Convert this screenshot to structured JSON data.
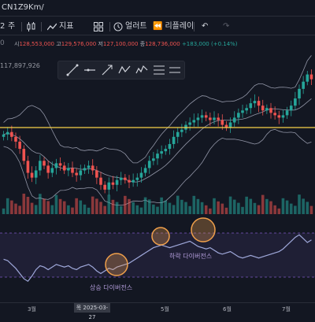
{
  "topbar": {
    "symbol": "CN1Z9Km/"
  },
  "toolbar": {
    "left_glyph": "2",
    "period_label": "주",
    "indicators_label": "지표",
    "alerts_label": "얼러트",
    "replay_label": "리플레이",
    "icons": [
      "candles-icon",
      "indicators-icon",
      "layout-icon",
      "alert-icon",
      "replay-icon",
      "undo-icon",
      "redo-icon"
    ]
  },
  "ohlc": {
    "open_label": "시",
    "open": "128,553,000",
    "high_label": "고",
    "high": "129,576,000",
    "low_label": "저",
    "low": "127,100,000",
    "close_label": "종",
    "close": "128,736,000",
    "change": "+183,000 (+0.14%)"
  },
  "header_left": "0",
  "low_label": "117,897,926",
  "annotations": {
    "bearish_divergence": "하락 다이버전스",
    "bullish_divergence": "상승 다이버전스"
  },
  "xaxis": {
    "ticks": [
      "3월",
      "5월",
      "6월",
      "7월"
    ],
    "cursor_date": "목 2025-03-27"
  },
  "colors": {
    "up": "#26a69a",
    "down": "#ef5350",
    "band": "#b2b5c8",
    "hline": "#f7d348",
    "rsi_band": "#7e57c2",
    "circle": "#f0a04b",
    "rsi_line": "#9fa8da"
  },
  "chart_data": {
    "type": "candlestick",
    "overlays": [
      "bollinger-bands",
      "horizontal-line",
      "volume",
      "rsi"
    ],
    "x": [
      "3월",
      "5월",
      "6월",
      "7월"
    ],
    "close_series": [
      0.72,
      0.74,
      0.7,
      0.66,
      0.6,
      0.5,
      0.4,
      0.36,
      0.42,
      0.5,
      0.46,
      0.4,
      0.44,
      0.48,
      0.46,
      0.42,
      0.44,
      0.4,
      0.38,
      0.42,
      0.44,
      0.46,
      0.42,
      0.36,
      0.3,
      0.26,
      0.32,
      0.3,
      0.34,
      0.36,
      0.34,
      0.32,
      0.34,
      0.36,
      0.4,
      0.44,
      0.5,
      0.52,
      0.56,
      0.58,
      0.6,
      0.64,
      0.7,
      0.74,
      0.76,
      0.8,
      0.82,
      0.84,
      0.86,
      0.88,
      0.86,
      0.84,
      0.86,
      0.84,
      0.8,
      0.78,
      0.82,
      0.86,
      0.9,
      0.92,
      0.94,
      0.98,
      1.0,
      0.96,
      0.92,
      0.94,
      0.9,
      0.88,
      0.86,
      0.88,
      0.92,
      0.96,
      1.02,
      1.1,
      1.16,
      1.22,
      1.18
    ],
    "rsi_series": [
      0.52,
      0.5,
      0.44,
      0.38,
      0.3,
      0.22,
      0.18,
      0.26,
      0.36,
      0.42,
      0.4,
      0.36,
      0.4,
      0.44,
      0.42,
      0.4,
      0.42,
      0.38,
      0.36,
      0.4,
      0.42,
      0.44,
      0.4,
      0.34,
      0.3,
      0.34,
      0.38,
      0.36,
      0.4,
      0.42,
      0.44,
      0.46,
      0.5,
      0.54,
      0.58,
      0.62,
      0.66,
      0.7,
      0.72,
      0.74,
      0.72,
      0.7,
      0.72,
      0.74,
      0.76,
      0.78,
      0.8,
      0.76,
      0.72,
      0.7,
      0.68,
      0.7,
      0.66,
      0.62,
      0.6,
      0.62,
      0.64,
      0.6,
      0.56,
      0.54,
      0.56,
      0.58,
      0.56,
      0.54,
      0.56,
      0.58,
      0.6,
      0.62,
      0.64,
      0.68,
      0.74,
      0.8,
      0.86,
      0.9,
      0.84,
      0.78,
      0.82
    ]
  }
}
